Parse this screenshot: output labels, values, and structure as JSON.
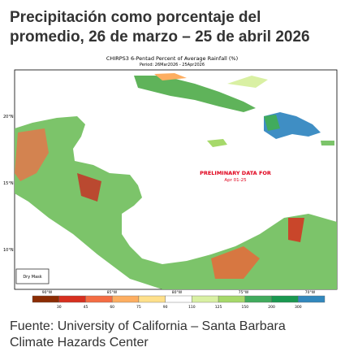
{
  "header": {
    "title_lines": [
      "Precipitación como porcentaje del",
      "promedio, 26 de marzo – 25 de abril 2026"
    ]
  },
  "map": {
    "title": "CHIRPS3 6-Pentad Percent of Average Rainfall (%)",
    "subtitle": "Period: 26Mar2026 - 25Apr2026",
    "annotation": {
      "lines": [
        "PRELIMINARY DATA FOR",
        "Apr 01-25"
      ],
      "color": "#e0001b"
    },
    "legend_box": "Dry Mask",
    "latitude_labels": [
      "20°N",
      "15°N",
      "10°N"
    ],
    "longitude_labels": [
      "90°W",
      "85°W",
      "80°W",
      "75°W",
      "70°W"
    ],
    "colorbar": {
      "labels": [
        "30",
        "45",
        "60",
        "75",
        "90",
        "110",
        "125",
        "150",
        "200",
        "300"
      ],
      "colors": [
        "#8c2d04",
        "#d7301f",
        "#f46d43",
        "#fdae61",
        "#fee08b",
        "#ffffff",
        "#d9f0a3",
        "#a6d96a",
        "#41ab5d",
        "#1a9850",
        "#3288bd"
      ]
    }
  },
  "footer": {
    "source_lines": [
      "Fuente: University of California – Santa Barbara",
      "Climate Hazards Center"
    ]
  }
}
